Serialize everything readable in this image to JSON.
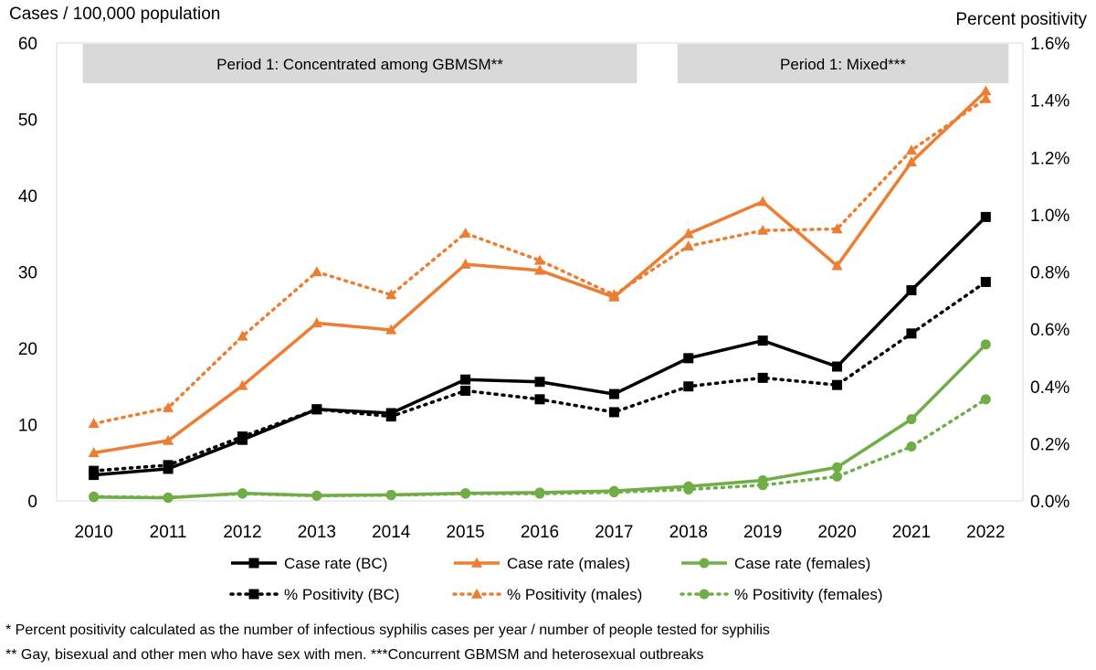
{
  "chart_data": {
    "type": "line",
    "left_axis_title": "Cases / 100,000 population",
    "right_axis_title": "Percent positivity",
    "categories": [
      "2010",
      "2011",
      "2012",
      "2013",
      "2014",
      "2015",
      "2016",
      "2017",
      "2018",
      "2019",
      "2020",
      "2021",
      "2022"
    ],
    "y_left": {
      "min": 0,
      "max": 60,
      "ticks": [
        "0",
        "10",
        "20",
        "30",
        "40",
        "50",
        "60"
      ]
    },
    "y_right": {
      "min": 0,
      "max": 1.6,
      "ticks": [
        "0.0%",
        "0.2%",
        "0.4%",
        "0.6%",
        "0.8%",
        "1.0%",
        "1.2%",
        "1.4%",
        "1.6%"
      ]
    },
    "periods": [
      {
        "label": "Period 1: Concentrated among GBMSM**",
        "from": "2010",
        "to": "2017"
      },
      {
        "label": "Period 1: Mixed***",
        "from": "2018",
        "to": "2022"
      }
    ],
    "series": [
      {
        "name": "Case rate (BC)",
        "axis": "left",
        "color": "#000000",
        "style": "solid",
        "marker": "square",
        "values": [
          3.4,
          4.2,
          8.0,
          12.0,
          11.5,
          15.9,
          15.6,
          14.0,
          18.7,
          21.0,
          17.6,
          27.6,
          37.2
        ]
      },
      {
        "name": "Case rate (males)",
        "axis": "left",
        "color": "#ED7D31",
        "style": "solid",
        "marker": "triangle",
        "values": [
          6.3,
          7.9,
          15.1,
          23.3,
          22.4,
          31.0,
          30.2,
          26.7,
          35.0,
          39.2,
          30.8,
          44.4,
          53.7
        ]
      },
      {
        "name": "Case rate (females)",
        "axis": "left",
        "color": "#70AD47",
        "style": "solid",
        "marker": "circle",
        "values": [
          0.5,
          0.4,
          1.0,
          0.7,
          0.8,
          1.0,
          1.1,
          1.3,
          1.9,
          2.7,
          4.4,
          10.7,
          20.5
        ]
      },
      {
        "name": "% Positivity (BC)",
        "axis": "right",
        "color": "#000000",
        "style": "dotted",
        "marker": "square",
        "values": [
          0.105,
          0.125,
          0.225,
          0.32,
          0.295,
          0.385,
          0.355,
          0.31,
          0.4,
          0.43,
          0.405,
          0.585,
          0.765
        ]
      },
      {
        "name": "% Positivity (males)",
        "axis": "right",
        "color": "#ED7D31",
        "style": "dotted",
        "marker": "triangle",
        "values": [
          0.27,
          0.325,
          0.575,
          0.8,
          0.72,
          0.935,
          0.84,
          0.72,
          0.89,
          0.945,
          0.95,
          1.225,
          1.405
        ]
      },
      {
        "name": "% Positivity (females)",
        "axis": "right",
        "color": "#70AD47",
        "style": "dotted",
        "marker": "circle",
        "values": [
          0.015,
          0.012,
          0.025,
          0.018,
          0.02,
          0.025,
          0.025,
          0.03,
          0.04,
          0.055,
          0.085,
          0.19,
          0.355
        ]
      }
    ]
  },
  "footnotes": {
    "line1": "* Percent positivity calculated as the number of infectious syphilis cases per year / number of people tested for syphilis",
    "line2": "** Gay, bisexual and other men who have sex with men. ***Concurrent GBMSM and heterosexual outbreaks"
  }
}
